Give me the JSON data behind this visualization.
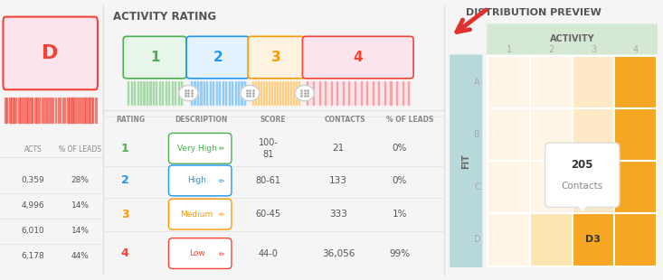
{
  "bg_color": "#f5f5f5",
  "panel_bg": "#ffffff",
  "title_left": "ACTIVITY RATING",
  "title_right": "DISTRIBUTION PREVIEW",
  "arrow_color": "#e03030",
  "rating_colors": [
    "#4caf50",
    "#2196f3",
    "#ff9800",
    "#f44336"
  ],
  "rating_bg_colors": [
    "#e8f5e9",
    "#e3f2fd",
    "#fff3e0",
    "#fce4ec"
  ],
  "rating_labels": [
    "1",
    "2",
    "3",
    "4"
  ],
  "rating_descriptions": [
    "Very High",
    "High",
    "Medium",
    "Low"
  ],
  "rating_desc_colors": [
    "#4caf50",
    "#2196f3",
    "#ff9800",
    "#f44336"
  ],
  "score_ranges": [
    "100-\n81",
    "80-61",
    "60-45",
    "44-0"
  ],
  "contacts": [
    "21",
    "133",
    "333",
    "36,056"
  ],
  "pct_leads": [
    "0%",
    "0%",
    "1%",
    "99%"
  ],
  "table_header": [
    "RATING",
    "DESCRIPTION",
    "SCORE",
    "CONTACTS",
    "% OF LEADS"
  ],
  "left_panel_title": "D",
  "left_panel_title_color": "#f44336",
  "left_contacts": [
    "0,359",
    "4,996",
    "6,010",
    "6,178"
  ],
  "left_pct": [
    "28%",
    "14%",
    "14%",
    "44%"
  ],
  "left_col_headers": [
    "ACTS",
    "% OF LEADS"
  ],
  "left_bar_color": "#f44336",
  "activity_label": "ACTIVITY",
  "activity_header_bg": "#d5e8d4",
  "activity_header_color": "#666666",
  "fit_label": "FIT",
  "fit_header_bg": "#b8d9da",
  "fit_header_color": "#666666",
  "fit_rows": [
    "A",
    "B",
    "C",
    "D"
  ],
  "activity_cols": [
    "1",
    "2",
    "3",
    "4"
  ],
  "grid_colors": [
    [
      "#fef5e7",
      "#fef5e7",
      "#fde8c8",
      "#f5a623"
    ],
    [
      "#fef5e7",
      "#fef5e7",
      "#fde8c8",
      "#f5a623"
    ],
    [
      "#fef5e7",
      "#fef5e7",
      "#fde8c8",
      "#f5a623"
    ],
    [
      "#fef5e7",
      "#fce4b0",
      "#f5a623",
      "#f5a623"
    ]
  ],
  "tooltip_text": "205\nContacts",
  "tooltip_row": 2,
  "tooltip_col": 3,
  "highlighted_cell_label": "D3",
  "highlighted_row": 3,
  "highlighted_col": 2,
  "separator_color": "#e0e0e0",
  "text_color": "#555555",
  "header_text_color": "#888888"
}
